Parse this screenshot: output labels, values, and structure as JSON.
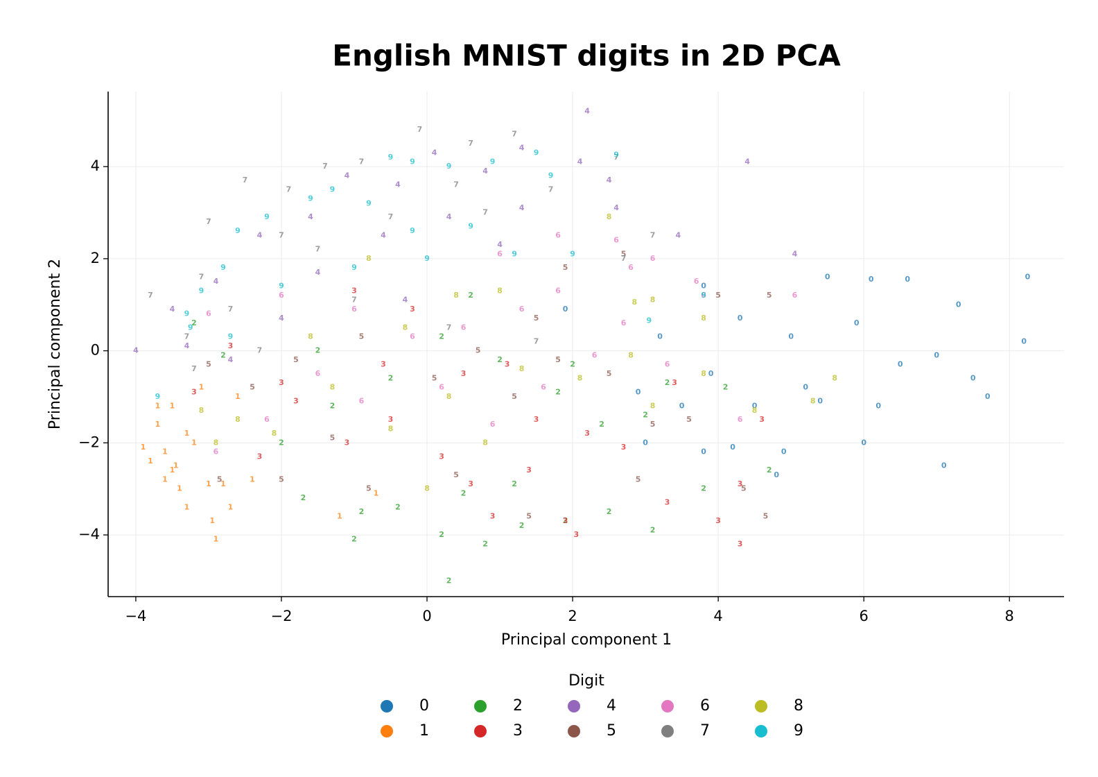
{
  "chart_data": {
    "type": "scatter",
    "title": "English MNIST digits in 2D PCA",
    "x_label": "Principal component 1",
    "y_label": "Principal component 2",
    "legend_title": "Digit",
    "legend_position": "bottom",
    "grid": true,
    "xlim": [
      -4.38,
      8.75
    ],
    "ylim": [
      -5.34,
      5.63
    ],
    "xticks": [
      {
        "value": -4,
        "label": "−4"
      },
      {
        "value": -2,
        "label": "−2"
      },
      0,
      2,
      4,
      6,
      8
    ],
    "yticks": [
      {
        "value": -4,
        "label": "−4"
      },
      {
        "value": -2,
        "label": "−2"
      },
      0,
      2,
      4
    ],
    "series": [
      {
        "name": "0",
        "color": "#1f77b4",
        "x": [
          8.25,
          8.2,
          7.7,
          7.5,
          7.3,
          7.1,
          7.0,
          6.6,
          6.5,
          6.2,
          6.0,
          6.1,
          5.9,
          5.5,
          5.4,
          5.2,
          5.0,
          4.9,
          4.8,
          4.5,
          4.3,
          4.2,
          3.9,
          3.8,
          3.5,
          3.2,
          3.0,
          2.9,
          1.9,
          3.8
        ],
        "y": [
          1.6,
          0.2,
          -1.0,
          -0.6,
          1.0,
          -2.5,
          -0.1,
          1.55,
          -0.3,
          -1.2,
          -2.0,
          1.55,
          0.6,
          1.6,
          -1.1,
          -0.8,
          0.3,
          -2.2,
          -2.7,
          -1.2,
          0.7,
          -2.1,
          -0.5,
          1.4,
          -1.2,
          0.3,
          -2.0,
          -0.9,
          0.9,
          -2.2
        ]
      },
      {
        "name": "1",
        "color": "#ff7f0e",
        "x": [
          -3.9,
          -3.8,
          -3.7,
          -3.6,
          -3.6,
          -3.5,
          -3.5,
          -3.4,
          -3.3,
          -3.3,
          -3.2,
          -3.1,
          -3.0,
          -2.95,
          -2.9,
          -2.8,
          -2.7,
          -2.6,
          -2.4,
          -3.7,
          -1.2,
          -0.7,
          -3.45
        ],
        "y": [
          -2.1,
          -2.4,
          -1.6,
          -2.2,
          -2.8,
          -1.2,
          -2.6,
          -3.0,
          -3.4,
          -1.8,
          -2.0,
          -0.8,
          -2.9,
          -3.7,
          -4.1,
          -2.9,
          -3.4,
          -1.0,
          -2.8,
          -1.2,
          -3.6,
          -3.1,
          -2.5
        ]
      },
      {
        "name": "2",
        "color": "#2ca02c",
        "x": [
          0.3,
          -1.0,
          0.2,
          0.8,
          1.3,
          1.9,
          -1.7,
          -0.9,
          -0.4,
          0.5,
          1.2,
          2.5,
          3.1,
          3.8,
          4.7,
          -2.0,
          -1.3,
          -0.5,
          0.2,
          1.0,
          1.8,
          2.4,
          3.3,
          4.1,
          -3.2,
          -2.8,
          -1.5,
          0.6,
          2.0,
          3.0
        ],
        "y": [
          -5.0,
          -4.1,
          -4.0,
          -4.2,
          -3.8,
          -3.7,
          -3.2,
          -3.5,
          -3.4,
          -3.1,
          -2.9,
          -3.5,
          -3.9,
          -3.0,
          -2.6,
          -2.0,
          -1.2,
          -0.6,
          0.3,
          -0.2,
          -0.9,
          -1.6,
          -0.7,
          -0.8,
          0.6,
          -0.1,
          0.0,
          1.2,
          -0.3,
          -1.4
        ]
      },
      {
        "name": "3",
        "color": "#d62728",
        "x": [
          4.3,
          4.3,
          4.0,
          3.3,
          2.05,
          1.9,
          1.4,
          0.6,
          0.2,
          -0.5,
          -1.1,
          -1.8,
          -2.3,
          -2.7,
          -2.0,
          -1.0,
          -0.2,
          0.5,
          1.1,
          1.5,
          2.2,
          2.7,
          3.4,
          4.6,
          -0.6,
          -3.2,
          0.9
        ],
        "y": [
          -2.9,
          -4.2,
          -3.7,
          -3.3,
          -4.0,
          -3.7,
          -2.6,
          -2.9,
          -2.3,
          -1.5,
          -2.0,
          -1.1,
          -2.3,
          0.1,
          -0.7,
          1.3,
          0.9,
          -0.5,
          -0.3,
          -1.5,
          -1.8,
          -2.1,
          -0.7,
          -1.5,
          -0.3,
          -0.9,
          -3.6
        ]
      },
      {
        "name": "4",
        "color": "#9467bd",
        "x": [
          2.2,
          4.4,
          1.3,
          0.8,
          0.1,
          -0.4,
          -1.1,
          -1.6,
          -2.3,
          -2.9,
          -3.5,
          -3.3,
          -2.7,
          -2.0,
          -1.5,
          -0.6,
          0.3,
          1.0,
          1.3,
          2.1,
          2.5,
          2.6,
          3.45,
          5.05,
          -0.3,
          -4.0
        ],
        "y": [
          5.2,
          4.1,
          4.4,
          3.9,
          4.3,
          3.6,
          3.8,
          2.9,
          2.5,
          1.5,
          0.9,
          0.1,
          -0.2,
          0.7,
          1.7,
          2.5,
          2.9,
          2.3,
          3.1,
          4.1,
          3.7,
          3.1,
          2.5,
          2.1,
          1.1,
          0.0
        ]
      },
      {
        "name": "5",
        "color": "#8c564b",
        "x": [
          4.65,
          4.35,
          1.4,
          -0.8,
          -2.0,
          -2.85,
          -2.4,
          -1.8,
          -0.9,
          0.1,
          0.7,
          1.2,
          1.8,
          2.5,
          3.1,
          3.6,
          2.7,
          1.9,
          1.5,
          4.0,
          4.7,
          -3.0,
          -1.3,
          0.4,
          2.9
        ],
        "y": [
          -3.6,
          -3.0,
          -3.6,
          -3.0,
          -2.8,
          -2.8,
          -0.8,
          -0.2,
          0.3,
          -0.6,
          0.0,
          -1.0,
          -0.2,
          -0.5,
          -1.6,
          -1.5,
          2.1,
          1.8,
          0.7,
          1.2,
          1.2,
          -0.3,
          -1.9,
          -2.7,
          -2.8
        ]
      },
      {
        "name": "6",
        "color": "#e377c2",
        "x": [
          5.05,
          3.8,
          3.7,
          3.1,
          2.8,
          2.6,
          2.7,
          1.8,
          1.3,
          1.0,
          0.5,
          -0.2,
          -0.9,
          -1.5,
          -2.2,
          -2.9,
          -3.0,
          -2.0,
          -1.0,
          0.2,
          0.9,
          1.6,
          2.3,
          3.3,
          4.3,
          1.8
        ],
        "y": [
          1.2,
          1.2,
          1.5,
          2.0,
          1.8,
          2.4,
          0.6,
          1.3,
          0.9,
          2.1,
          0.5,
          0.3,
          -1.1,
          -0.5,
          -1.5,
          -2.2,
          0.8,
          1.2,
          0.9,
          -0.8,
          -1.6,
          -0.8,
          -0.1,
          -0.3,
          -1.5,
          2.5
        ]
      },
      {
        "name": "7",
        "color": "#7f7f7f",
        "x": [
          -0.1,
          0.6,
          1.2,
          1.7,
          2.6,
          2.7,
          3.1,
          -0.9,
          -1.4,
          -1.9,
          -2.5,
          -3.0,
          -3.1,
          -3.8,
          -3.3,
          -2.7,
          -2.0,
          -1.5,
          -0.5,
          0.4,
          0.8,
          -1.0,
          -2.3,
          -3.2,
          0.3,
          1.5
        ],
        "y": [
          4.8,
          4.5,
          4.7,
          3.5,
          4.2,
          2.0,
          2.5,
          4.1,
          4.0,
          3.5,
          3.7,
          2.8,
          1.6,
          1.2,
          0.3,
          0.9,
          2.5,
          2.2,
          2.9,
          3.6,
          3.0,
          1.1,
          0.0,
          -0.4,
          0.5,
          0.2
        ]
      },
      {
        "name": "8",
        "color": "#bcbd22",
        "x": [
          2.85,
          3.1,
          3.1,
          3.8,
          4.5,
          5.3,
          2.5,
          1.0,
          0.4,
          -0.3,
          -0.8,
          -1.6,
          -2.1,
          -2.6,
          -2.9,
          -1.3,
          -0.5,
          0.3,
          0.8,
          1.3,
          2.1,
          2.8,
          3.8,
          5.6,
          -3.1,
          0.0
        ],
        "y": [
          1.05,
          1.1,
          -1.2,
          0.7,
          -1.3,
          -1.1,
          2.9,
          1.3,
          1.2,
          0.5,
          2.0,
          0.3,
          -1.8,
          -1.5,
          -2.0,
          -0.8,
          -1.7,
          -1.0,
          -2.0,
          -0.4,
          -0.6,
          -0.1,
          -0.5,
          -0.6,
          -1.3,
          -3.0
        ]
      },
      {
        "name": "9",
        "color": "#17becf",
        "x": [
          -3.7,
          -3.3,
          -3.1,
          -2.8,
          -2.6,
          -2.2,
          -2.0,
          -1.6,
          -1.3,
          -0.8,
          -0.5,
          -0.2,
          0.3,
          0.9,
          1.5,
          1.7,
          2.0,
          3.05,
          2.6,
          1.2,
          0.6,
          -0.2,
          -1.0,
          -2.7,
          3.8,
          0.0,
          -3.25
        ],
        "y": [
          -1.0,
          0.8,
          1.3,
          1.8,
          2.6,
          2.9,
          1.4,
          3.3,
          3.5,
          3.2,
          4.2,
          4.1,
          4.0,
          4.1,
          4.3,
          3.8,
          2.1,
          0.65,
          4.25,
          2.1,
          2.7,
          2.6,
          1.8,
          0.3,
          1.2,
          2.0,
          0.5
        ]
      }
    ]
  }
}
